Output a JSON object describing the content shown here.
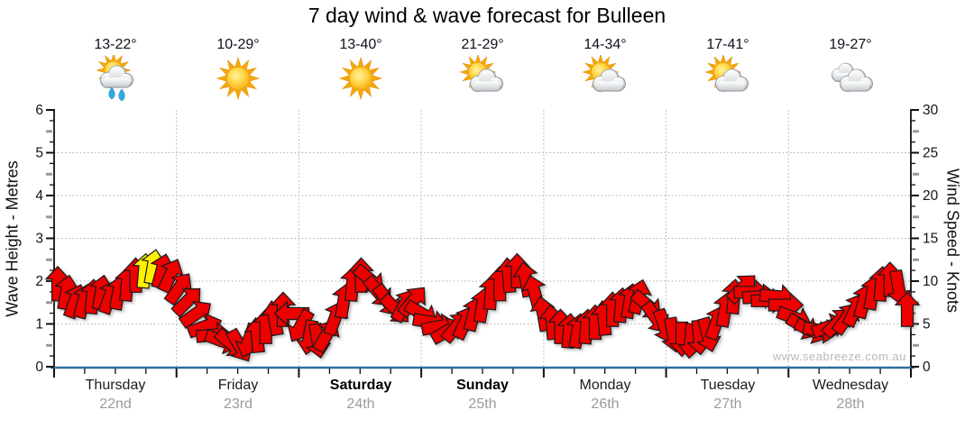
{
  "chart_data": {
    "type": "wind-arrow-series",
    "title": "7 day wind & wave forecast for Bulleen",
    "watermark": "www.seabreeze.com.au",
    "grid": "dotted horizontal each metre (5 knots) and vertical each day boundary",
    "left_axis": {
      "label": "Wave Height - Metres",
      "ticks": [
        0,
        1,
        2,
        3,
        4,
        5,
        6
      ],
      "range": [
        0,
        6
      ]
    },
    "right_axis": {
      "label": "Wind Speed - Knots",
      "ticks": [
        0,
        5,
        10,
        15,
        20,
        25,
        30
      ],
      "range": [
        0,
        30
      ]
    },
    "days": [
      {
        "name": "Thursday",
        "date": "22nd",
        "temp": "13-22°",
        "icon": "showers",
        "bold": false
      },
      {
        "name": "Friday",
        "date": "23rd",
        "temp": "10-29°",
        "icon": "sunny",
        "bold": false
      },
      {
        "name": "Saturday",
        "date": "24th",
        "temp": "13-40°",
        "icon": "sunny",
        "bold": true
      },
      {
        "name": "Sunday",
        "date": "25th",
        "temp": "21-29°",
        "icon": "partly",
        "bold": true
      },
      {
        "name": "Monday",
        "date": "26th",
        "temp": "14-34°",
        "icon": "partly",
        "bold": false
      },
      {
        "name": "Tuesday",
        "date": "27th",
        "temp": "17-41°",
        "icon": "partly",
        "bold": false
      },
      {
        "name": "Wednesday",
        "date": "28th",
        "temp": "19-27°",
        "icon": "cloudy",
        "bold": false
      }
    ],
    "arrows": {
      "speeds_knots": [
        11.5,
        10.5,
        9.5,
        9.5,
        10,
        10.5,
        10,
        10.5,
        11.5,
        12.5,
        13,
        13.5,
        13,
        12.5,
        11,
        9.5,
        8,
        6.5,
        5.5,
        4.8,
        4.5,
        4.2,
        4.8,
        5.5,
        6.5,
        7.5,
        8.5,
        8,
        6.5,
        5.2,
        4.8,
        5.5,
        7.5,
        9.5,
        11.5,
        12.5,
        12,
        10.5,
        9.5,
        8.5,
        9,
        9.5,
        8,
        7,
        6.5,
        6,
        6.5,
        7,
        8,
        9,
        10.5,
        11.5,
        12.5,
        13,
        12,
        10.5,
        8,
        7,
        6.5,
        6,
        6,
        6.5,
        7,
        7.5,
        8.5,
        9,
        9.5,
        10,
        9,
        7.5,
        6.5,
        5.5,
        5,
        4.8,
        5.2,
        5.5,
        7,
        8.5,
        10,
        11,
        10.5,
        10,
        9.5,
        10,
        9,
        7.5,
        6.5,
        6,
        6,
        6.5,
        7,
        7.5,
        8.5,
        9.5,
        10.5,
        11.5,
        12,
        11,
        8.5
      ],
      "directions_deg": [
        0,
        10,
        20,
        15,
        5,
        10,
        20,
        10,
        5,
        0,
        5,
        10,
        15,
        25,
        35,
        45,
        55,
        70,
        85,
        110,
        130,
        150,
        200,
        355,
        0,
        350,
        0,
        270,
        210,
        190,
        170,
        30,
        20,
        10,
        5,
        0,
        130,
        140,
        145,
        135,
        30,
        40,
        120,
        100,
        80,
        60,
        40,
        25,
        15,
        10,
        5,
        0,
        355,
        0,
        350,
        345,
        350,
        355,
        0,
        5,
        10,
        5,
        0,
        355,
        0,
        5,
        10,
        15,
        130,
        145,
        160,
        170,
        180,
        185,
        175,
        165,
        20,
        10,
        5,
        45,
        90,
        85,
        90,
        95,
        90,
        110,
        120,
        115,
        100,
        70,
        45,
        35,
        25,
        15,
        10,
        5,
        0,
        170,
        0
      ],
      "yellow_indices": [
        10,
        11
      ]
    },
    "colors": {
      "arrow_red": "#EC0000",
      "arrow_yellow": "#FFF200",
      "arrow_outline": "#1A1A1A",
      "axis_blue": "#2E6E9E",
      "grid_gray": "#ABABAB",
      "date_gray": "#9B9B9B"
    }
  }
}
